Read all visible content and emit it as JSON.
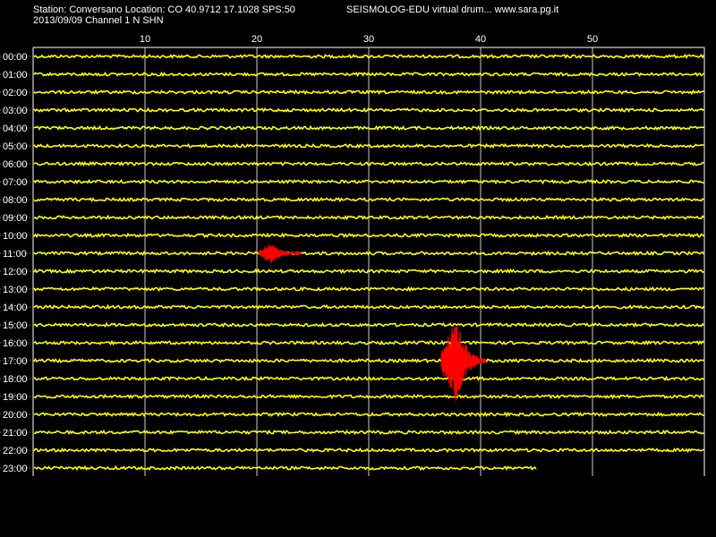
{
  "header": {
    "station_line": "Station: Conversano Location: CO 40.9712 17.1028 SPS:50",
    "app_line": "SEISMOLOG-EDU virtual drum... www.sara.pg.it",
    "date_channel_line": "2013/09/09  Channel 1 N SHN"
  },
  "drum": {
    "minute_ticks": [
      "10",
      "20",
      "30",
      "40",
      "50"
    ],
    "minute_tick_values": [
      10,
      20,
      30,
      40,
      50
    ],
    "minutes_per_row": 60,
    "hour_labels": [
      "00:00",
      "01:00",
      "02:00",
      "03:00",
      "04:00",
      "05:00",
      "06:00",
      "07:00",
      "08:00",
      "09:00",
      "10:00",
      "11:00",
      "12:00",
      "13:00",
      "14:00",
      "15:00",
      "16:00",
      "17:00",
      "18:00",
      "19:00",
      "20:00",
      "21:00",
      "22:00",
      "23:00"
    ],
    "last_row_end_minute": 45,
    "events": [
      {
        "hour": 11,
        "start_minute": 20.2,
        "peak_minute": 21.3,
        "end_minute": 24.0,
        "amplitude": 12
      },
      {
        "hour": 17,
        "start_minute": 36.5,
        "peak_minute": 37.9,
        "end_minute": 40.5,
        "amplitude": 48
      }
    ],
    "colors": {
      "trace": "#ffff00",
      "event": "#ff0000",
      "grid": "#ffffff",
      "background": "#000000"
    }
  }
}
